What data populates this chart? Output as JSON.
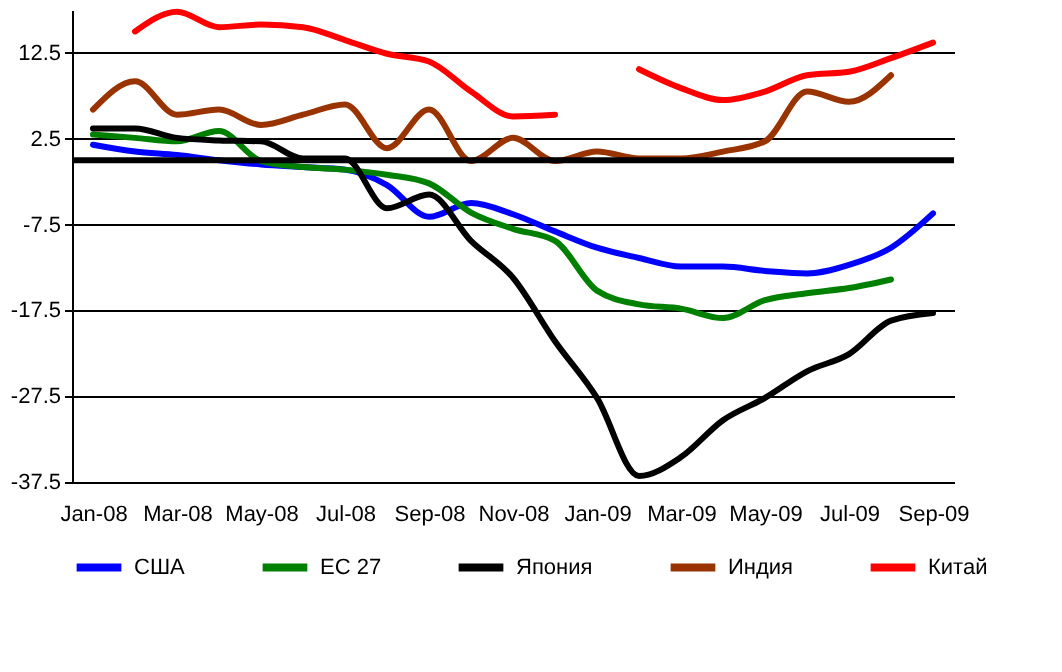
{
  "chart_data": {
    "type": "line",
    "categories": [
      "Jan-08",
      null,
      "Mar-08",
      null,
      "May-08",
      null,
      "Jul-08",
      null,
      "Sep-08",
      null,
      "Nov-08",
      null,
      "Jan-09",
      null,
      "Mar-09",
      null,
      "May-09",
      null,
      "Jul-09",
      null,
      "Sep-09"
    ],
    "series": [
      {
        "name": "США",
        "color": "#0000ff",
        "values": [
          1.8,
          1.0,
          0.6,
          0,
          -0.5,
          -0.8,
          -1.1,
          -2.9,
          -6.6,
          -5.0,
          -6.3,
          -8.3,
          -10.2,
          -11.4,
          -12.4,
          -12.4,
          -12.9,
          -13.2,
          -12.2,
          -10.2,
          -6.2
        ]
      },
      {
        "name": "ЕС 27",
        "color": "#008000",
        "values": [
          3.0,
          2.6,
          2.2,
          3.4,
          -0.1,
          -0.8,
          -1.1,
          -1.7,
          -2.7,
          -6.1,
          -8.0,
          -9.4,
          -15.2,
          -16.8,
          -17.3,
          -18.4,
          -16.3,
          -15.5,
          -14.9,
          -13.9,
          null
        ]
      },
      {
        "name": "Япония",
        "color": "#000000",
        "values": [
          3.7,
          3.7,
          2.6,
          2.3,
          2.2,
          0.2,
          0.2,
          -5.6,
          -4.0,
          -9.4,
          -13.7,
          -21.1,
          -27.7,
          -36.8,
          -34.6,
          -30.3,
          -27.7,
          -24.6,
          -22.6,
          -18.7,
          -17.8
        ]
      },
      {
        "name": "Индия",
        "color": "#993300",
        "values": [
          5.9,
          9.2,
          5.3,
          5.9,
          4.1,
          5.3,
          6.5,
          1.4,
          5.9,
          -0.1,
          2.6,
          -0.1,
          1.0,
          0.2,
          0.2,
          1.0,
          2.2,
          8.0,
          6.8,
          9.9,
          null
        ]
      },
      {
        "name": "Китай",
        "color": "#ff0000",
        "values": [
          null,
          15.0,
          17.3,
          15.5,
          15.8,
          15.5,
          14.0,
          12.4,
          11.5,
          8.0,
          5.1,
          5.3,
          null,
          10.6,
          8.4,
          7.0,
          8.0,
          9.9,
          10.3,
          11.9,
          13.7
        ]
      }
    ],
    "ylim": [
      -37.5,
      17.5
    ],
    "yticks": [
      -37.5,
      -27.5,
      -17.5,
      -7.5,
      2.5,
      12.5
    ],
    "grid": "y",
    "legend": "bottom",
    "ref_lines": [
      {
        "axis": "y",
        "value": 0,
        "color": "#000000"
      }
    ]
  }
}
